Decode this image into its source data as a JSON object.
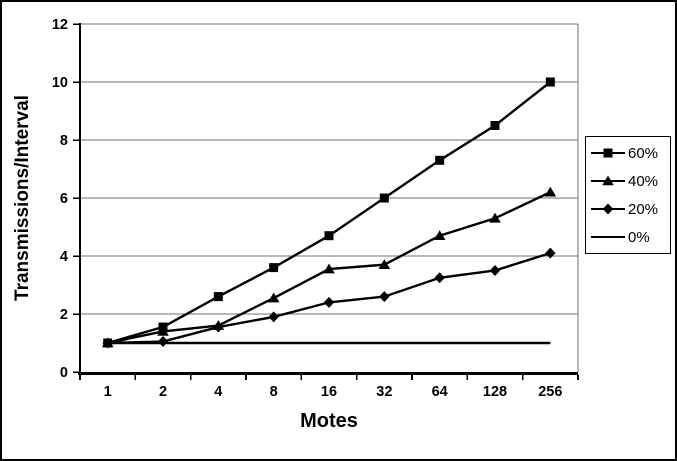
{
  "chart_data": {
    "type": "line",
    "title": "",
    "xlabel": "Motes",
    "ylabel": "Transmissions/Interval",
    "categories": [
      "1",
      "2",
      "4",
      "8",
      "16",
      "32",
      "64",
      "128",
      "256"
    ],
    "x_scale": "categorical-log2",
    "ylim": [
      0,
      12
    ],
    "y_ticks": [
      0,
      2,
      4,
      6,
      8,
      10,
      12
    ],
    "grid": "horizontal",
    "legend_position": "right-outside",
    "line_color": "#000000",
    "gridline_color": "#707070",
    "background_color": "#ffffff",
    "series": [
      {
        "name": "60%",
        "marker": "square",
        "values": [
          1.0,
          1.55,
          2.6,
          3.6,
          4.7,
          6.0,
          7.3,
          8.5,
          10.0
        ]
      },
      {
        "name": "40%",
        "marker": "triangle",
        "values": [
          1.0,
          1.4,
          1.6,
          2.55,
          3.55,
          3.7,
          4.7,
          5.3,
          6.2
        ]
      },
      {
        "name": "20%",
        "marker": "diamond",
        "values": [
          1.0,
          1.05,
          1.55,
          1.9,
          2.4,
          2.6,
          3.25,
          3.5,
          4.1
        ]
      },
      {
        "name": "0%",
        "marker": "none",
        "values": [
          1.0,
          1.0,
          1.0,
          1.0,
          1.0,
          1.0,
          1.0,
          1.0,
          1.0
        ]
      }
    ]
  }
}
